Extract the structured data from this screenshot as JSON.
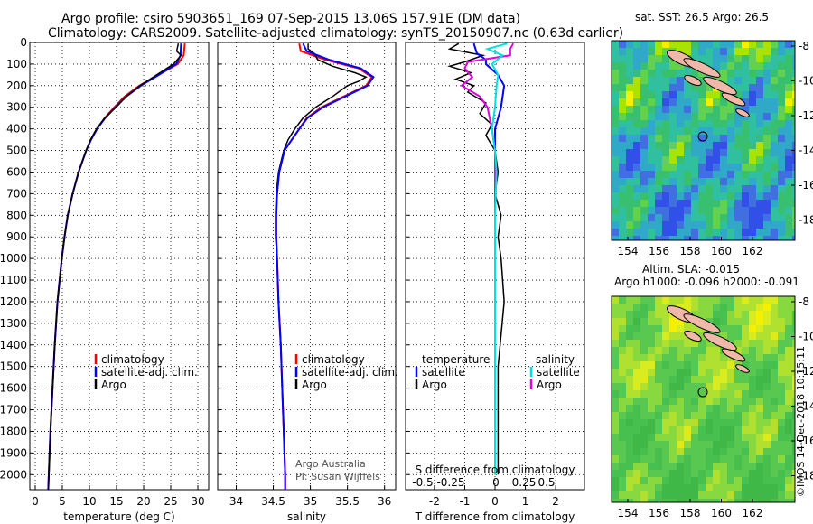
{
  "title": {
    "line1": "Argo profile: csiro 5903651_169 07-Sep-2015 13.06S 157.91E (DM data)",
    "line2": "Climatology: CARS2009. Satellite-adjusted climatology: synTS_20150907.nc (0.63d earlier)"
  },
  "footer": {
    "institution": "Argo Australia",
    "pi": "PI: Susan Wijffels",
    "stamp": "©IMOS 14-Dec-2018 10:15:11"
  },
  "colors": {
    "climatology": "#ff0000",
    "satellite": "#0000ff",
    "argo": "#000000",
    "sal_satellite": "#00e0e0",
    "sal_argo": "#e000e0"
  },
  "maps": {
    "sst": {
      "title": "sat. SST: 26.5 Argo: 26.5"
    },
    "sla": {
      "title1": "Altim. SLA: -0.015",
      "title2": "Argo h1000: -0.096 h2000: -0.091"
    },
    "x_ticks": [
      "154",
      "156",
      "158",
      "160",
      "162"
    ],
    "y_ticks": [
      "-8",
      "-10",
      "-12",
      "-14",
      "-16",
      "-18"
    ]
  },
  "chart_data": [
    {
      "type": "line",
      "name": "temperature-profile",
      "xlabel": "temperature (deg C)",
      "ylabel": "",
      "xlim": [
        -1,
        32
      ],
      "ylim": [
        2070,
        0
      ],
      "x_ticks": [
        "0",
        "5",
        "10",
        "15",
        "20",
        "25",
        "30"
      ],
      "y_ticks": [
        "0",
        "100",
        "200",
        "300",
        "400",
        "500",
        "600",
        "700",
        "800",
        "900",
        "1000",
        "1100",
        "1200",
        "1300",
        "1400",
        "1500",
        "1600",
        "1700",
        "1800",
        "1900",
        "2000"
      ],
      "legend": [
        "climatology",
        "satellite-adj. clim.",
        "Argo"
      ],
      "series": [
        {
          "name": "climatology",
          "depth": [
            5,
            60,
            100,
            150,
            200,
            250,
            300,
            350,
            400,
            450,
            500,
            600,
            700,
            800,
            900,
            1000,
            1200,
            1400,
            1600,
            1800,
            2000,
            2070
          ],
          "values": [
            27.6,
            27.4,
            26.3,
            22.7,
            19.2,
            16.5,
            14.6,
            12.8,
            11.4,
            10.3,
            9.4,
            8.0,
            6.9,
            6.0,
            5.4,
            4.9,
            4.1,
            3.6,
            3.2,
            2.8,
            2.5,
            2.4
          ]
        },
        {
          "name": "satellite-adj. clim.",
          "depth": [
            5,
            60,
            100,
            150,
            200,
            250,
            300,
            350,
            400,
            450,
            500,
            600,
            700,
            800,
            900,
            1000,
            1200,
            1400,
            1600,
            1800,
            2000,
            2070
          ],
          "values": [
            26.9,
            26.8,
            26.0,
            22.8,
            19.5,
            16.8,
            14.8,
            12.9,
            11.4,
            10.3,
            9.4,
            8.0,
            6.9,
            6.0,
            5.4,
            4.9,
            4.1,
            3.6,
            3.2,
            2.8,
            2.5,
            2.4
          ]
        },
        {
          "name": "Argo",
          "depth": [
            5,
            40,
            60,
            80,
            100,
            150,
            200,
            250,
            300,
            350,
            400,
            450,
            500,
            600,
            700,
            800,
            900,
            1000,
            1200,
            1400,
            1600,
            1800,
            2000,
            2070
          ],
          "values": [
            26.4,
            26.1,
            26.9,
            26.2,
            25.5,
            22.4,
            19.3,
            16.8,
            14.9,
            12.8,
            11.3,
            10.2,
            9.4,
            8.0,
            6.9,
            6.0,
            5.4,
            4.9,
            4.1,
            3.6,
            3.2,
            2.8,
            2.5,
            2.4
          ]
        }
      ]
    },
    {
      "type": "line",
      "name": "salinity-profile",
      "xlabel": "salinity",
      "xlim": [
        33.75,
        36.15
      ],
      "ylim": [
        2070,
        0
      ],
      "x_ticks": [
        "34",
        "34.5",
        "35",
        "35.5",
        "36"
      ],
      "legend": [
        "climatology",
        "satellite-adj. clim.",
        "Argo"
      ],
      "series": [
        {
          "name": "climatology",
          "depth": [
            5,
            40,
            80,
            120,
            160,
            200,
            250,
            300,
            350,
            400,
            450,
            500,
            600,
            700,
            800,
            900,
            1000,
            1200,
            1400,
            1600,
            1800,
            2000,
            2070
          ],
          "values": [
            34.85,
            34.87,
            35.2,
            35.65,
            35.83,
            35.75,
            35.45,
            35.15,
            34.95,
            34.85,
            34.75,
            34.65,
            34.58,
            34.55,
            34.54,
            34.54,
            34.55,
            34.57,
            34.6,
            34.62,
            34.64,
            34.66,
            34.66
          ]
        },
        {
          "name": "satellite-adj. clim.",
          "depth": [
            5,
            40,
            80,
            120,
            160,
            200,
            250,
            300,
            350,
            400,
            450,
            500,
            600,
            700,
            800,
            900,
            1000,
            1200,
            1400,
            1600,
            1800,
            2000,
            2070
          ],
          "values": [
            34.9,
            34.95,
            35.25,
            35.68,
            35.85,
            35.77,
            35.47,
            35.17,
            34.96,
            34.85,
            34.75,
            34.65,
            34.58,
            34.55,
            34.54,
            34.54,
            34.55,
            34.57,
            34.6,
            34.62,
            34.64,
            34.66,
            34.66
          ]
        },
        {
          "name": "Argo",
          "depth": [
            5,
            30,
            50,
            80,
            110,
            140,
            160,
            180,
            200,
            250,
            300,
            350,
            400,
            450,
            500,
            600,
            700,
            800,
            900,
            1000,
            1200,
            1400,
            1600,
            1800,
            2000,
            2070
          ],
          "values": [
            34.97,
            34.97,
            35.05,
            35.1,
            35.3,
            35.6,
            35.75,
            35.65,
            35.5,
            35.3,
            35.07,
            34.9,
            34.79,
            34.7,
            34.64,
            34.57,
            34.54,
            34.53,
            34.53,
            34.55,
            34.57,
            34.6,
            34.62,
            34.64,
            34.66,
            34.66
          ]
        }
      ]
    },
    {
      "type": "line",
      "name": "difference-profile",
      "xlabel": "T difference from climatology",
      "x2label": "S difference from climatology",
      "xlim": [
        -2.95,
        2.95
      ],
      "ylim": [
        2070,
        0
      ],
      "x_ticks": [
        "-2",
        "-1",
        "0",
        "1",
        "2"
      ],
      "x2_ticks": [
        "-0.5",
        "-0.25",
        "0",
        "0.25",
        "0.5"
      ],
      "legend_t": [
        "temperature",
        "satellite",
        "Argo"
      ],
      "legend_s": [
        "salinity",
        "satellite",
        "Argo"
      ],
      "series": [
        {
          "name": "T satellite",
          "depth": [
            5,
            50,
            80,
            100,
            150,
            200,
            300,
            400,
            500,
            600,
            800,
            1000,
            1200,
            1500,
            2000
          ],
          "values": [
            -0.7,
            -0.6,
            -0.3,
            -0.3,
            0.1,
            0.3,
            0.2,
            0.0,
            0.0,
            0.0,
            0.0,
            0.0,
            0.0,
            0.0,
            0.0
          ]
        },
        {
          "name": "T Argo",
          "depth": [
            5,
            30,
            60,
            90,
            110,
            140,
            170,
            200,
            230,
            280,
            330,
            380,
            430,
            500,
            600,
            700,
            800,
            900,
            1000,
            1200,
            1500,
            2000
          ],
          "values": [
            -1.2,
            -1.5,
            -0.4,
            -1.0,
            -1.5,
            -0.8,
            -1.3,
            -0.7,
            -0.9,
            -0.3,
            -0.5,
            -0.1,
            -0.3,
            0.0,
            0.1,
            0.0,
            0.2,
            0.1,
            0.2,
            0.3,
            0.1,
            0.1
          ]
        },
        {
          "name": "S satellite",
          "depth": [
            5,
            30,
            60,
            100,
            150,
            200,
            300,
            400,
            500,
            600,
            800,
            1000,
            1200,
            1500,
            2000
          ],
          "values": [
            0.08,
            -0.05,
            0.05,
            -0.02,
            0.02,
            0.01,
            0.0,
            -0.02,
            0.0,
            0.01,
            0.0,
            0.0,
            0.0,
            0.0,
            0.0
          ]
        },
        {
          "name": "S Argo",
          "depth": [
            5,
            30,
            60,
            90,
            120,
            160,
            200,
            250,
            300,
            400,
            500,
            600,
            800,
            1000,
            1200,
            1500,
            2000
          ],
          "values": [
            0.12,
            0.1,
            0.1,
            -0.18,
            -0.2,
            -0.15,
            -0.22,
            -0.1,
            -0.05,
            -0.02,
            0.0,
            0.0,
            0.0,
            0.0,
            0.0,
            0.0,
            0.0
          ]
        }
      ]
    }
  ]
}
